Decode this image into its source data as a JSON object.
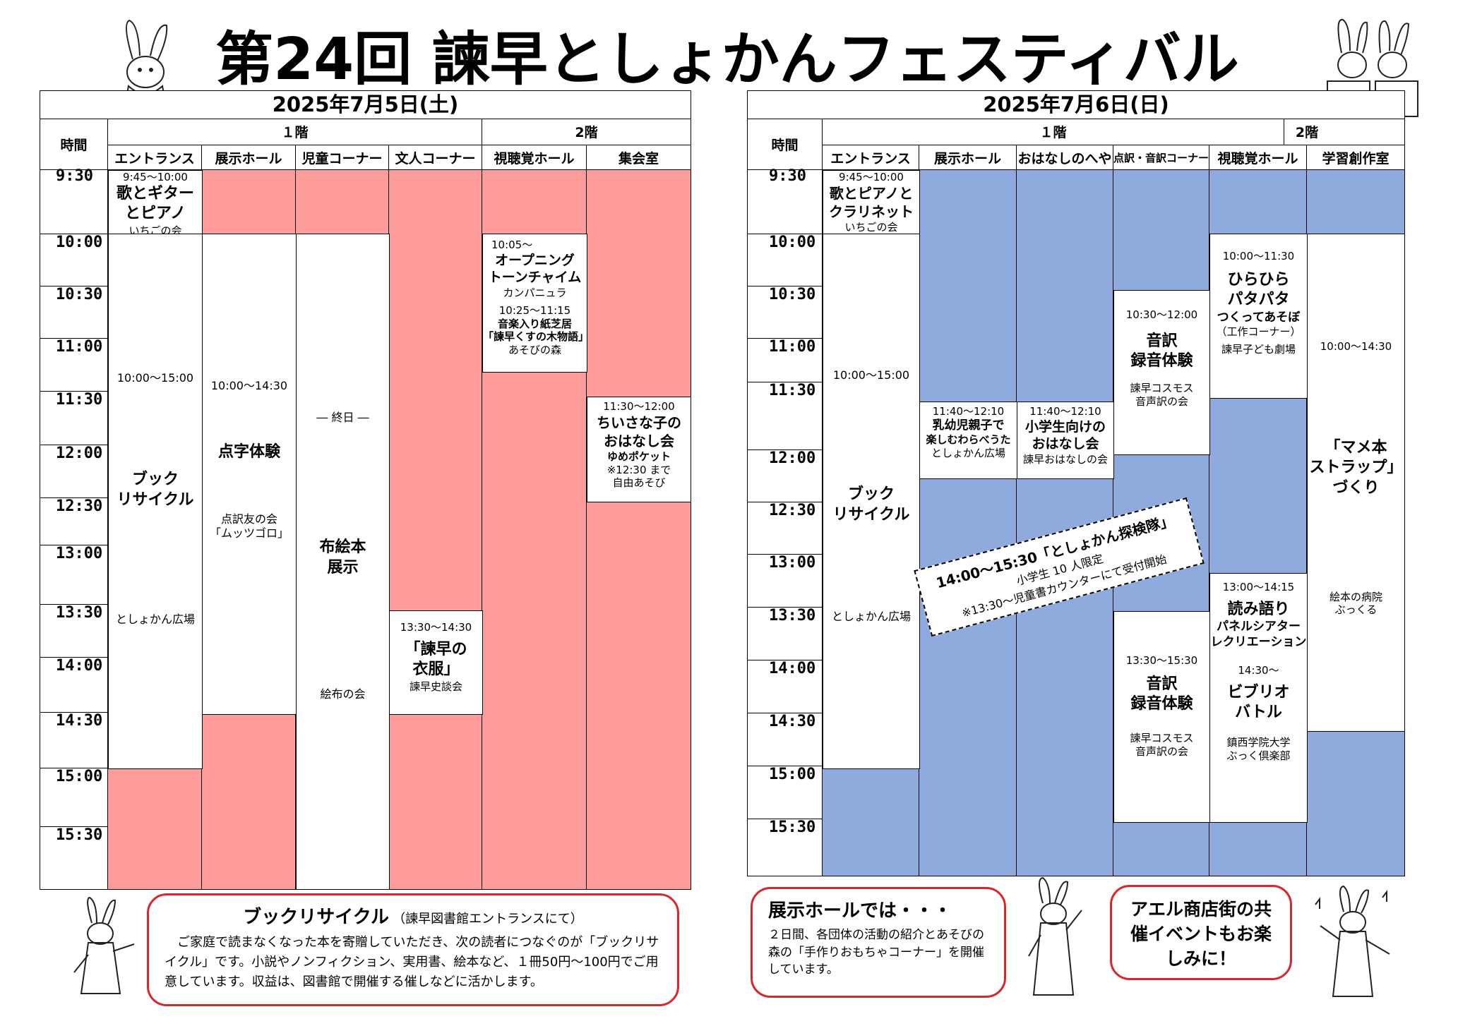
{
  "title": "第24回 諫早としょかんフェスティバル",
  "common": {
    "time_header": "時間",
    "floor1": "１階",
    "floor2": "2階",
    "times": [
      "9:30",
      "10:00",
      "10:30",
      "11:00",
      "11:30",
      "12:00",
      "12:30",
      "13:00",
      "13:30",
      "14:00",
      "14:30",
      "15:00",
      "15:30"
    ]
  },
  "day1": {
    "date": "2025年7月5日(土)",
    "columns": [
      "エントランス",
      "展示ホール",
      "児童コーナー",
      "文人コーナー",
      "視聴覚ホール",
      "集会室"
    ],
    "events": {
      "e1": {
        "time": "9:45～10:00",
        "l1": "歌とギター",
        "l2": "とピアノ",
        "group": "いちごの会"
      },
      "e2": {
        "time": "10:00～15:00",
        "l1": "ブック",
        "l2": "リサイクル",
        "place": "としょかん広場"
      },
      "e3": {
        "time": "10:00～14:30",
        "name": "点字体験",
        "g1": "点訳友の会",
        "g2": "「ムッツゴロ」"
      },
      "e4": {
        "all_day": "― 終日 ―",
        "l1": "布絵本",
        "l2": "展示",
        "group": "絵布の会"
      },
      "e5": {
        "time": "13:30～14:30",
        "l1": "「諫早の",
        "l2": "衣服」",
        "group": "諫早史談会"
      },
      "e6": {
        "time1": "10:05～",
        "l1": "オープニング",
        "l2": "トーンチャイム",
        "group1": "カンパニュラ",
        "time2": "10:25～11:15",
        "l3": "音楽入り紙芝居",
        "l4": "「諫早くすの木物語」",
        "group2": "あそびの森"
      },
      "e7": {
        "time": "11:30～12:00",
        "l1": "ちいさな子の",
        "l2": "おはなし会",
        "group": "ゆめポケット",
        "n1": "※12:30 まで",
        "n2": "自由あそび"
      }
    }
  },
  "day2": {
    "date": "2025年7月6日(日)",
    "columns": [
      "エントランス",
      "展示ホール",
      "おはなしのへや",
      "点訳・音訳コーナー",
      "視聴覚ホール",
      "学習創作室"
    ],
    "events": {
      "e1": {
        "time": "9:45～10:00",
        "l1": "歌とピアノと",
        "l2": "クラリネット",
        "group": "いちごの会"
      },
      "e2": {
        "time": "10:00～15:00",
        "l1": "ブック",
        "l2": "リサイクル",
        "place": "としょかん広場"
      },
      "e3": {
        "time": "11:40～12:10",
        "l1": "乳幼児親子で",
        "l2": "楽しむわらべうた",
        "place": "としょかん広場"
      },
      "e4": {
        "time": "11:40～12:10",
        "l1": "小学生向けの",
        "l2": "おはなし会",
        "group": "諫早おはなしの会"
      },
      "e5": {
        "time": "10:30～12:00",
        "l1": "音訳",
        "l2": "録音体験",
        "g1": "諫早コスモス",
        "g2": "音声訳の会"
      },
      "e6": {
        "time": "13:30～15:30",
        "l1": "音訳",
        "l2": "録音体験",
        "g1": "諫早コスモス",
        "g2": "音声訳の会"
      },
      "e7": {
        "time": "10:00～11:30",
        "l1": "ひらひら",
        "l2": "パタパタ",
        "l3": "つくってあそぼ",
        "l4": "（工作コーナー）",
        "group": "諫早子ども劇場"
      },
      "e8": {
        "time1": "13:00～14:15",
        "l1": "読み語り",
        "l2": "パネルシアター",
        "l3": "レクリエーション",
        "time2": "14:30～",
        "l4": "ビブリオ",
        "l5": "バトル",
        "g1": "鎮西学院大学",
        "g2": "ぶっく倶楽部"
      },
      "e9": {
        "time": "10:00～14:30",
        "l1": "「マメ本",
        "l2": "ストラップ」",
        "l3": "づくり",
        "g1": "絵本の病院",
        "g2": "ぶっくる"
      }
    },
    "banner": {
      "l1": "14:00～15:30「としょかん探検隊」",
      "l2": "小学生 10 人限定",
      "l3": "※13:30～児童書カウンターにて受付開始"
    }
  },
  "bottom": {
    "recycle_title": "ブックリサイクル",
    "recycle_sub": "（諫早図書館エントランスにて）",
    "recycle_body": "ご家庭で読まなくなった本を寄贈していただき、次の読者につなぐのが「ブックリサイクル」です。小説やノンフィクション、実用書、絵本など、１冊50円～100円でご用意しています。収益は、図書館で開催する催しなどに活かします。",
    "hall_title": "展示ホールでは・・・",
    "hall_body": "２日間、各団体の活動の紹介とあそびの森の「手作りおもちゃコーナー」を開催しています。",
    "aeru": "アエル商店街の共催イベントもお楽しみに！"
  },
  "colors": {
    "day1_fill": "#fe9c9c",
    "day2_fill": "#8faadc",
    "bubble_border": "#d9262b"
  }
}
